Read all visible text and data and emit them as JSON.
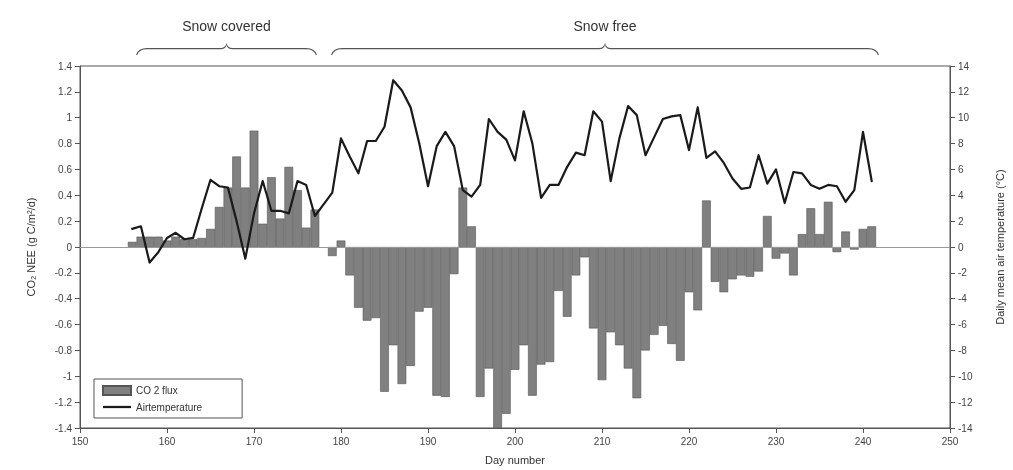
{
  "chart_data": {
    "type": "bar",
    "xlabel": "Day number",
    "ylabel": "CO₂ NEE (g C/m²/d)",
    "y2label": "Daily mean air temperature (°C)",
    "annotations": [
      "Snow covered",
      "Snow free"
    ],
    "x": [
      156,
      157,
      158,
      159,
      160,
      161,
      162,
      163,
      164,
      165,
      166,
      167,
      168,
      169,
      170,
      171,
      172,
      173,
      174,
      175,
      176,
      177,
      178,
      179,
      180,
      181,
      182,
      183,
      184,
      185,
      186,
      187,
      188,
      189,
      190,
      191,
      192,
      193,
      194,
      195,
      196,
      197,
      198,
      199,
      200,
      201,
      202,
      203,
      204,
      205,
      206,
      207,
      208,
      209,
      210,
      211,
      212,
      213,
      214,
      215,
      216,
      217,
      218,
      219,
      220,
      221,
      222,
      223,
      224,
      225,
      226,
      227,
      228,
      229,
      230,
      231,
      232,
      233,
      234,
      235,
      236,
      237,
      238,
      239,
      240,
      241
    ],
    "series": [
      {
        "name": "CO 2 flux",
        "color": "#808080",
        "values": [
          0.04,
          0.08,
          0.08,
          0.08,
          0.05,
          0.08,
          0.06,
          0.06,
          0.07,
          0.14,
          0.31,
          0.46,
          0.7,
          0.46,
          0.9,
          0.18,
          0.54,
          0.22,
          0.62,
          0.44,
          0.15,
          0.29,
          null,
          -0.07,
          0.05,
          -0.22,
          -0.47,
          -0.57,
          -0.55,
          -1.12,
          -0.76,
          -1.06,
          -0.92,
          -0.5,
          -0.47,
          -1.15,
          -1.16,
          -0.21,
          0.46,
          0.16,
          -1.16,
          -0.94,
          -1.4,
          -1.29,
          -0.95,
          -0.76,
          -1.15,
          -0.91,
          -0.89,
          -0.34,
          -0.54,
          -0.22,
          -0.08,
          -0.63,
          -1.03,
          -0.66,
          -0.76,
          -0.94,
          -1.17,
          -0.8,
          -0.68,
          -0.61,
          -0.75,
          -0.88,
          -0.35,
          -0.49,
          0.36,
          -0.27,
          -0.35,
          -0.25,
          -0.22,
          -0.23,
          -0.19,
          0.24,
          -0.09,
          -0.05,
          -0.22,
          0.1,
          0.3,
          0.1,
          0.35,
          -0.04,
          0.12,
          -0.02,
          0.14,
          0.16
        ]
      },
      {
        "type": "line",
        "name": "Airtemperature",
        "color": "#1a1a1a",
        "axis": "y2",
        "values": [
          1.4,
          1.6,
          -1.2,
          -0.4,
          0.7,
          1.1,
          0.6,
          0.7,
          3.0,
          5.2,
          4.7,
          4.6,
          2.0,
          -0.9,
          2.6,
          5.1,
          2.8,
          2.8,
          2.6,
          5.1,
          4.8,
          2.4,
          3.3,
          4.2,
          8.4,
          7.0,
          5.7,
          8.2,
          8.2,
          9.3,
          12.9,
          12.1,
          10.8,
          8.0,
          4.7,
          7.8,
          8.9,
          7.8,
          4.4,
          3.9,
          4.8,
          9.9,
          8.9,
          8.3,
          6.7,
          10.5,
          8.0,
          3.8,
          4.8,
          4.8,
          6.2,
          7.3,
          7.1,
          10.5,
          9.7,
          5.1,
          8.4,
          10.9,
          10.2,
          7.1,
          8.5,
          9.9,
          10.1,
          10.2,
          7.5,
          10.8,
          6.9,
          7.4,
          6.5,
          5.3,
          4.5,
          4.6,
          7.1,
          4.9,
          6.0,
          3.4,
          5.8,
          5.7,
          4.8,
          4.5,
          4.8,
          4.7,
          3.5,
          4.4,
          8.9,
          5.1
        ]
      }
    ],
    "xlim": [
      150,
      250
    ],
    "xticks": [
      150,
      160,
      170,
      180,
      190,
      200,
      210,
      220,
      230,
      240,
      250
    ],
    "ylim": [
      -1.4,
      1.4
    ],
    "yticks": [
      -1.4,
      -1.2,
      -1,
      -0.8,
      -0.6,
      -0.4,
      -0.2,
      0,
      0.2,
      0.4,
      0.6,
      0.8,
      1,
      1.2,
      1.4
    ],
    "y2lim": [
      -14,
      14
    ],
    "y2ticks": [
      -14,
      -12,
      -10,
      -8,
      -6,
      -4,
      -2,
      0,
      2,
      4,
      6,
      8,
      10,
      12,
      14
    ],
    "ref_lines": [
      {
        "axis": "y",
        "value": 0,
        "color": "#999999"
      }
    ],
    "legend": "bottom left",
    "grid": false,
    "marker": "none",
    "line_style": "solid"
  }
}
